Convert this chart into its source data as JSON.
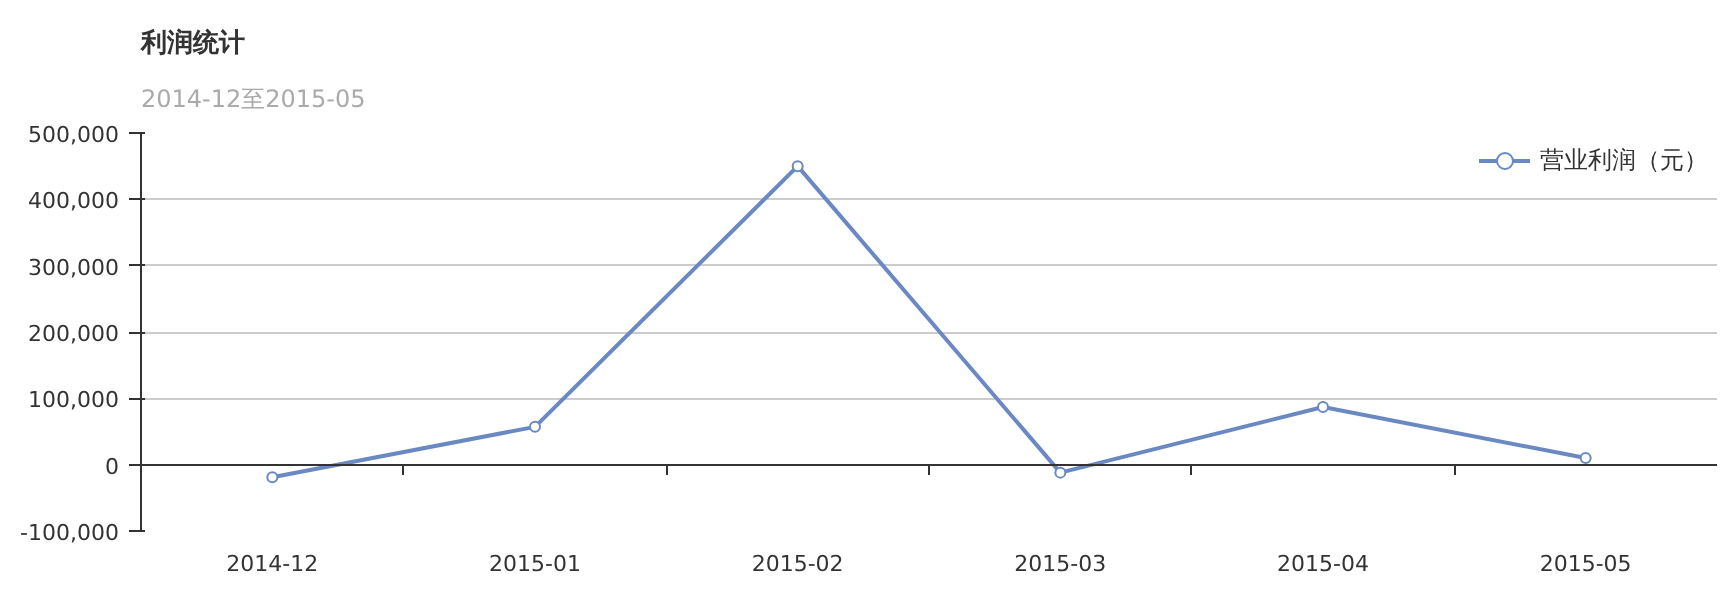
{
  "chart_data": {
    "type": "line",
    "title": "利润统计",
    "subtitle": "2014-12至2015-05",
    "categories": [
      "2014-12",
      "2015-01",
      "2015-02",
      "2015-03",
      "2015-04",
      "2015-05"
    ],
    "series": [
      {
        "name": "营业利润（元）",
        "color": "#6a89c3",
        "values": [
          -19000,
          57000,
          450000,
          -12000,
          87000,
          10000
        ]
      }
    ],
    "ylim": [
      -100000,
      500000
    ],
    "yticks": [
      {
        "value": -100000,
        "label": "-100,000"
      },
      {
        "value": 0,
        "label": "0"
      },
      {
        "value": 100000,
        "label": "100,000"
      },
      {
        "value": 200000,
        "label": "200,000"
      },
      {
        "value": 300000,
        "label": "300,000"
      },
      {
        "value": 400000,
        "label": "400,000"
      },
      {
        "value": 500000,
        "label": "500,000"
      }
    ],
    "grid": "y",
    "legend": "top right",
    "marker": "circle",
    "line_style": "solid"
  }
}
